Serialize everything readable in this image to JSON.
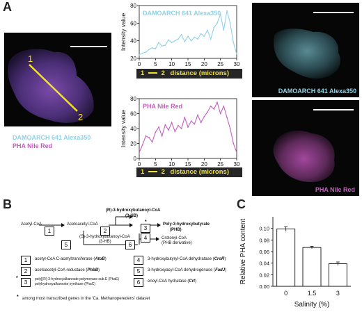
{
  "panels": {
    "A": "A",
    "B": "B",
    "C": "C"
  },
  "panel_a": {
    "stain_labels": {
      "damoarch": "DAMOARCH 641 Alexa350",
      "pha": "PHA Nile Red"
    },
    "line_markers": {
      "start": "1",
      "end": "2"
    },
    "distance_bar": {
      "start": "1",
      "end": "2",
      "label": "distance (microns)"
    },
    "colors": {
      "cyan": "#8fd3e6",
      "magenta": "#c35fbf",
      "line": "#f2e22a"
    }
  },
  "chart_data": [
    {
      "type": "line",
      "title": "DAMOARCH 641 Alexa350",
      "xlabel": "distance (microns)",
      "ylabel": "Intensity value",
      "xlim": [
        0,
        30
      ],
      "ylim": [
        20,
        80
      ],
      "xticks": [
        0,
        5,
        10,
        15,
        20,
        25,
        30
      ],
      "yticks": [
        20,
        40,
        60,
        80
      ],
      "series": [
        {
          "color": "#8fd3e6",
          "x": [
            0,
            1,
            2,
            3,
            4,
            5,
            6,
            7,
            8,
            9,
            10,
            11,
            12,
            13,
            14,
            15,
            16,
            17,
            18,
            19,
            20,
            21,
            22,
            23,
            24,
            25,
            26,
            27,
            28,
            29,
            30
          ],
          "y": [
            24,
            26,
            27,
            30,
            32,
            31,
            38,
            34,
            35,
            41,
            38,
            40,
            42,
            47,
            39,
            45,
            40,
            44,
            42,
            48,
            45,
            52,
            42,
            55,
            60,
            70,
            52,
            74,
            60,
            38,
            25
          ]
        }
      ]
    },
    {
      "type": "line",
      "title": "PHA Nile Red",
      "xlabel": "distance (microns)",
      "ylabel": "Intensity value",
      "xlim": [
        0,
        30
      ],
      "ylim": [
        0,
        80
      ],
      "xticks": [
        0,
        5,
        10,
        15,
        20,
        25,
        30
      ],
      "yticks": [
        0,
        20,
        40,
        60,
        80
      ],
      "series": [
        {
          "color": "#c35fbf",
          "x": [
            0,
            1,
            2,
            3,
            4,
            5,
            6,
            7,
            8,
            9,
            10,
            11,
            12,
            13,
            14,
            15,
            16,
            17,
            18,
            19,
            20,
            21,
            22,
            23,
            24,
            25,
            26,
            27,
            28,
            29,
            30
          ],
          "y": [
            8,
            18,
            30,
            28,
            22,
            35,
            42,
            30,
            45,
            38,
            48,
            36,
            44,
            40,
            55,
            42,
            50,
            46,
            58,
            48,
            56,
            62,
            70,
            66,
            75,
            60,
            70,
            55,
            40,
            20,
            8
          ]
        }
      ]
    },
    {
      "type": "bar",
      "title": "",
      "xlabel": "Salinity (%)",
      "ylabel": "Relative PHA content",
      "categories": [
        "0",
        "1.5",
        "3"
      ],
      "values": [
        0.099,
        0.067,
        0.039
      ],
      "errors": [
        0.004,
        0.002,
        0.003
      ],
      "ylim": [
        0,
        0.12
      ],
      "yticks": [
        0,
        0.02,
        0.04,
        0.06,
        0.08,
        0.1
      ],
      "ytick_labels": [
        "0.00",
        "0.02",
        "0.04",
        "0.06",
        "0.08",
        "0.10"
      ]
    }
  ],
  "pathway": {
    "nodes": {
      "acetyl": "Acetyl-CoA",
      "acetoacetyl": "Acetoacetyl-CoA",
      "r3hb": "(R)-3-hydroxybutanoyl-CoA",
      "r3hb_sub": "(3-HB)",
      "phb": "Poly-3-hydroxybutyrate",
      "phb_sub": "(PHB)",
      "s3hb": "(S)-3-hydroxybutanoyl-CoA",
      "s3hb_sub": "(3-HB)",
      "crotonyl": "Crotonyl-CoA",
      "crotonyl_sub": "(PHB derivative)",
      "star": "*"
    },
    "step_numbers": [
      "1",
      "2",
      "3",
      "4",
      "5",
      "6"
    ],
    "legend": [
      {
        "num": "1",
        "text": "acetyl-CoA C-acetyltransferase (",
        "gene": "AtoB",
        "end": ")"
      },
      {
        "num": "2",
        "text": "acetoacetyl-CoA reductase (",
        "gene": "PhbB",
        "end": ")"
      },
      {
        "num": "3",
        "text": "poly[(R)-3-hydroxyalkanoate polymerase sub.E (PhaE)",
        "text2": "polyhydroxyalkanoate synthase (PhaC)",
        "gene": "",
        "end": ""
      },
      {
        "num": "4",
        "text": "3-hydroxybutyryl-CoA dehydratase (",
        "gene": "CroR",
        "end": ")"
      },
      {
        "num": "5",
        "text": "3-hydroxyacyl-CoA dehydrogenase (",
        "gene": "FadJ",
        "end": ")"
      },
      {
        "num": "6",
        "text": "enoyl-CoA hydratase (",
        "gene": "Crt",
        "end": ")"
      }
    ],
    "star_marker": "*",
    "footnote": "among most transcribed genes in the 'Ca. Methanoperedens' dataset"
  }
}
